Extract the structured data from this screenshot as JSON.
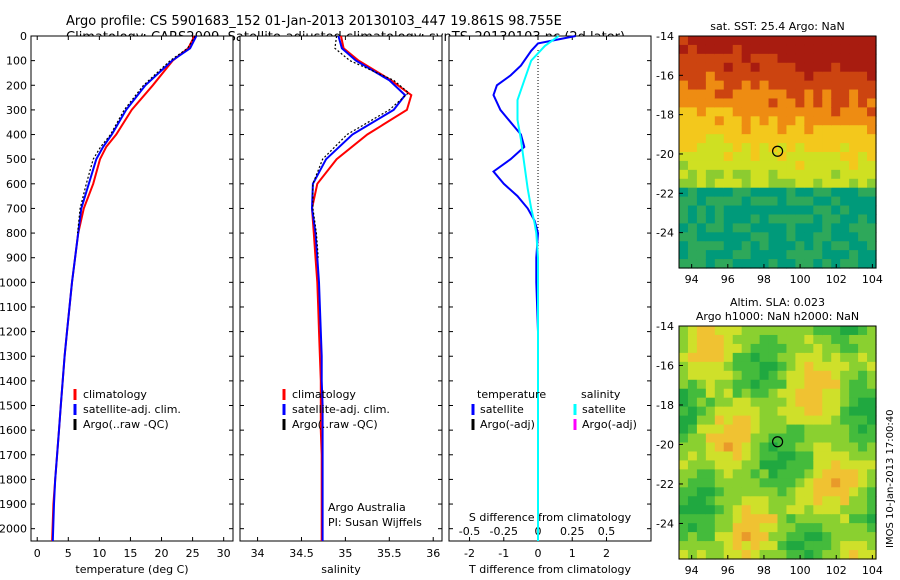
{
  "header": {
    "line1": "Argo profile: CS 5901683_152 01-Jan-2013 20130103_447 19.861S 98.755E",
    "line2": "Climatology: CARS2009. Satellite-adjusted climatology: synTS_20130103.nc (2d later)"
  },
  "side_stamp": "IMOS 10-Jan-2013 17:00:40",
  "colors": {
    "climatology": "#ff0000",
    "satellite": "#0000ff",
    "argo": "#000000",
    "sat_salinity": "#00ffff",
    "argo_salinity_adj": "#ff00ff"
  },
  "chart_data": [
    {
      "type": "line",
      "title": "",
      "xlabel": "temperature (deg C)",
      "ylabel": "",
      "xlim": [
        -1,
        31.5
      ],
      "ylim": [
        2050,
        0
      ],
      "xticks": [
        "0",
        "5",
        "10",
        "15",
        "20",
        "25",
        "30"
      ],
      "yticks": [
        "0",
        "100",
        "200",
        "300",
        "400",
        "500",
        "600",
        "700",
        "800",
        "900",
        "1000",
        "1100",
        "1200",
        "1300",
        "1400",
        "1500",
        "1600",
        "1700",
        "1800",
        "1900",
        "2000"
      ],
      "legend": {
        "placement": "lower-left",
        "entries": [
          "climatology",
          "satellite-adj. clim.",
          "Argo(..raw -QC)"
        ]
      },
      "series": [
        {
          "name": "climatology",
          "color": "#ff0000",
          "x": [
            25.3,
            24.3,
            21.8,
            18.6,
            15.2,
            12.7,
            11.1,
            10.1,
            9.0,
            7.5,
            6.6,
            6.1,
            5.6,
            5.2,
            4.8,
            4.4,
            4.1,
            3.8,
            3.5,
            3.2,
            2.9,
            2.6,
            2.4
          ],
          "y": [
            0,
            50,
            100,
            200,
            300,
            400,
            450,
            500,
            600,
            700,
            800,
            900,
            1000,
            1100,
            1200,
            1300,
            1400,
            1500,
            1600,
            1700,
            1800,
            1900,
            2050
          ]
        },
        {
          "name": "satellite-adj. clim.",
          "color": "#0000ff",
          "x": [
            25.6,
            24.6,
            21.7,
            17.4,
            14.3,
            12.0,
            10.6,
            9.5,
            8.3,
            7.1,
            6.6,
            6.1,
            5.6,
            5.2,
            4.8,
            4.4,
            4.1,
            3.8,
            3.5,
            3.2,
            2.9,
            2.7,
            2.5
          ],
          "y": [
            0,
            50,
            100,
            200,
            300,
            400,
            450,
            500,
            600,
            700,
            800,
            900,
            1000,
            1100,
            1200,
            1300,
            1400,
            1500,
            1600,
            1700,
            1800,
            1900,
            2050
          ]
        },
        {
          "name": "Argo(..raw -QC)",
          "color": "#000000",
          "x": [
            25.4,
            24.2,
            21.4,
            17.1,
            14.0,
            11.8,
            10.2,
            9.0,
            7.9,
            6.9,
            6.5
          ],
          "y": [
            0,
            50,
            100,
            200,
            300,
            400,
            450,
            500,
            600,
            700,
            800
          ]
        }
      ]
    },
    {
      "type": "line",
      "title": "",
      "xlabel": "salinity",
      "ylabel": "",
      "xlim": [
        33.8,
        36.1
      ],
      "ylim": [
        2050,
        0
      ],
      "xticks": [
        "34",
        "34.5",
        "35",
        "35.5",
        "36"
      ],
      "legend": {
        "placement": "lower-left",
        "entries": [
          "climatology",
          "satellite-adj. clim.",
          "Argo(..raw -QC)"
        ]
      },
      "annotations": [
        "Argo Australia",
        "PI: Susan Wijffels"
      ],
      "series": [
        {
          "name": "climatology",
          "color": "#ff0000",
          "x": [
            34.95,
            34.98,
            35.15,
            35.52,
            35.75,
            35.7,
            35.25,
            34.9,
            34.68,
            34.62,
            34.64,
            34.66,
            34.68,
            34.69,
            34.7,
            34.71,
            34.72,
            34.72,
            34.72,
            34.73,
            34.73,
            34.73,
            34.73
          ],
          "y": [
            0,
            50,
            100,
            180,
            240,
            300,
            400,
            500,
            600,
            700,
            800,
            900,
            1000,
            1100,
            1200,
            1300,
            1400,
            1500,
            1600,
            1700,
            1800,
            1900,
            2050
          ]
        },
        {
          "name": "satellite-adj. clim.",
          "color": "#0000ff",
          "x": [
            34.92,
            34.96,
            35.12,
            35.5,
            35.68,
            35.55,
            35.08,
            34.78,
            34.63,
            34.62,
            34.66,
            34.68,
            34.7,
            34.71,
            34.72,
            34.73,
            34.73,
            34.74,
            34.74,
            34.74,
            34.74,
            34.74,
            34.74
          ],
          "y": [
            0,
            50,
            100,
            180,
            240,
            300,
            400,
            500,
            600,
            700,
            800,
            900,
            1000,
            1100,
            1200,
            1300,
            1400,
            1500,
            1600,
            1700,
            1800,
            1900,
            2050
          ]
        },
        {
          "name": "Argo(..raw -QC)",
          "color": "#000000",
          "x": [
            34.9,
            34.88,
            35.05,
            35.55,
            35.72,
            35.5,
            35.02,
            34.74,
            34.63,
            34.63,
            34.67,
            34.69
          ],
          "y": [
            0,
            50,
            100,
            180,
            230,
            300,
            400,
            500,
            600,
            700,
            800,
            900
          ]
        }
      ]
    },
    {
      "type": "line",
      "title": "",
      "xlabel": "T difference from climatology",
      "top_axis_label": "S difference from climatology",
      "ylabel": "",
      "xlim": [
        -2.6,
        3.3
      ],
      "ylim": [
        2050,
        0
      ],
      "xticks": [
        "-2",
        "-1",
        "0",
        "1",
        "2"
      ],
      "top_xticks": [
        "-0.5",
        "-0.25",
        "0",
        "0.25",
        "0.5"
      ],
      "legend": {
        "placement": "lower-left",
        "entries": [
          "temperature",
          "satellite",
          "Argo(-adj)",
          "salinity",
          "satellite",
          "Argo(-adj)"
        ]
      },
      "series": [
        {
          "name": "temperature satellite",
          "color": "#0000ff",
          "x": [
            1.1,
            0.0,
            -0.2,
            -0.5,
            -0.8,
            -1.2,
            -1.3,
            -1.1,
            -0.8,
            -0.5,
            -0.4,
            -0.8,
            -1.3,
            -1.0,
            -0.6,
            -0.3,
            -0.1,
            0.0,
            -0.05,
            -0.05,
            0.0,
            0.0,
            0.0,
            0.0,
            0.0,
            0.0,
            0.0,
            0.0
          ],
          "y": [
            0,
            30,
            60,
            120,
            160,
            200,
            240,
            300,
            350,
            400,
            450,
            500,
            550,
            600,
            650,
            700,
            750,
            800,
            900,
            1000,
            1200,
            1400,
            1600,
            1800,
            1950,
            2050,
            2050,
            2050
          ]
        },
        {
          "name": "salinity satellite",
          "color": "#00ffff",
          "x": [
            0.6,
            0.2,
            -0.2,
            -0.4,
            -0.6,
            -0.6,
            -0.5,
            -0.4,
            -0.3,
            -0.2,
            -0.1,
            -0.05,
            0.0,
            0.0,
            0.0,
            0.0,
            0.0,
            0.0
          ],
          "y": [
            0,
            40,
            100,
            180,
            260,
            340,
            420,
            520,
            620,
            700,
            760,
            800,
            900,
            1100,
            1400,
            1700,
            1950,
            2050
          ]
        }
      ]
    },
    {
      "type": "heatmap",
      "title": "sat. SST: 25.4  Argo: NaN",
      "xlim": [
        93.3,
        104.2
      ],
      "ylim": [
        -25.8,
        -14
      ],
      "xticks": [
        "94",
        "96",
        "98",
        "100",
        "102",
        "104"
      ],
      "yticks": [
        "-14",
        "-16",
        "-18",
        "-20",
        "-22",
        "-24"
      ],
      "marker": {
        "lon": 98.755,
        "lat": -19.861
      },
      "colormap": [
        "#009a7a",
        "#2ea85a",
        "#8ccc30",
        "#cfe022",
        "#f3c81c",
        "#ee8c12",
        "#cc4410",
        "#a81c10"
      ]
    },
    {
      "type": "heatmap",
      "title": "Altim. SLA: 0.023",
      "subtitle": "Argo h1000: NaN  h2000: NaN",
      "xlim": [
        93.3,
        104.2
      ],
      "ylim": [
        -25.8,
        -14
      ],
      "xticks": [
        "94",
        "96",
        "98",
        "100",
        "102",
        "104"
      ],
      "yticks": [
        "-14",
        "-16",
        "-18",
        "-20",
        "-22",
        "-24"
      ],
      "marker": {
        "lon": 98.755,
        "lat": -19.861
      },
      "colormap": [
        "#20a840",
        "#44bb3c",
        "#8ad030",
        "#cfe02a",
        "#f0c232",
        "#e99a2a"
      ]
    }
  ]
}
